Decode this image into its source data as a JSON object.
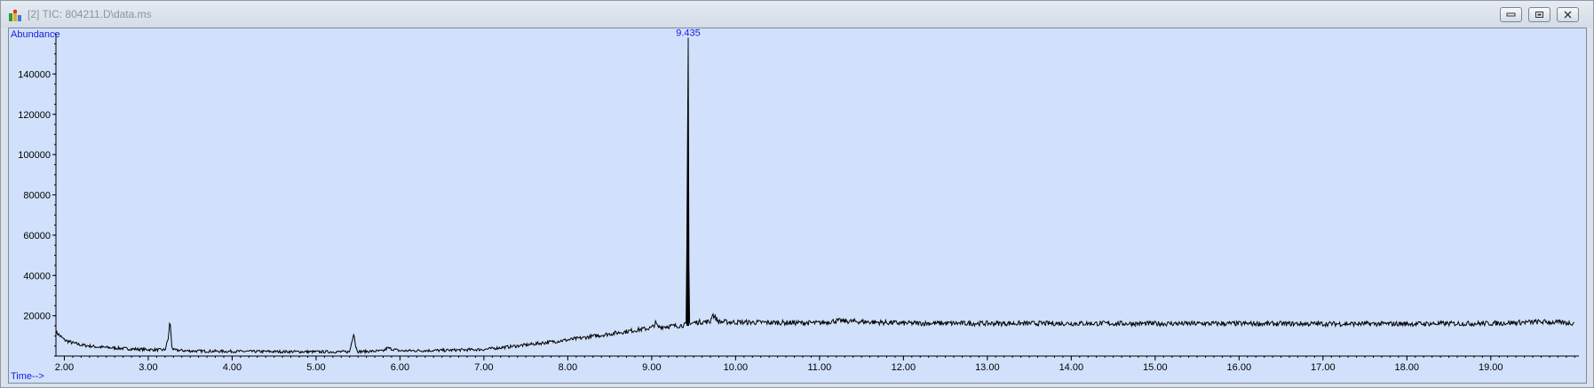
{
  "window": {
    "title": "[2] TIC: 804211.D\\data.ms",
    "icons": {
      "app": "chromatogram-app-icon",
      "minimize": "minimize-icon",
      "restore": "restore-icon",
      "close": "close-icon"
    }
  },
  "colors": {
    "plot_background": "#d1e1fb",
    "trace": "#000000",
    "labels": "#1a1adf",
    "window_frame": "#dbe2ec"
  },
  "chart_data": {
    "type": "line",
    "ylabel": "Abundance",
    "xlabel": "Time-->",
    "x_ticks": [
      "2.00",
      "3.00",
      "4.00",
      "5.00",
      "6.00",
      "7.00",
      "8.00",
      "9.00",
      "10.00",
      "11.00",
      "12.00",
      "13.00",
      "14.00",
      "15.00",
      "16.00",
      "17.00",
      "18.00",
      "19.00"
    ],
    "y_ticks": [
      "20000",
      "40000",
      "60000",
      "80000",
      "100000",
      "120000",
      "140000"
    ],
    "xlim": [
      1.9,
      20.05
    ],
    "ylim": [
      0,
      160000
    ],
    "grid": false,
    "peak_label": "9.435",
    "series": [
      {
        "x": [
          1.9,
          1.95,
          2.0,
          2.1,
          2.2,
          2.4,
          2.6,
          2.8,
          3.0,
          3.2,
          3.24,
          3.26,
          3.28,
          3.3,
          3.5,
          4.0,
          4.5,
          5.0,
          5.4,
          5.45,
          5.47,
          5.5,
          5.8,
          5.85,
          6.0,
          6.5,
          7.0,
          7.5,
          8.0,
          8.5,
          9.0,
          9.05,
          9.07,
          9.1,
          9.3,
          9.41,
          9.42,
          9.43,
          9.435,
          9.44,
          9.45,
          9.46,
          9.5,
          9.6,
          9.7,
          9.72,
          9.8,
          10.0,
          10.5,
          11.0,
          11.2,
          12.0,
          13.0,
          14.0,
          15.0,
          16.0,
          17.0,
          18.0,
          19.0,
          19.6,
          20.0
        ],
        "y": [
          12000,
          10000,
          8000,
          6500,
          5500,
          4500,
          4000,
          3500,
          3200,
          3000,
          9000,
          18000,
          5000,
          3000,
          2500,
          2300,
          2200,
          2100,
          2100,
          12000,
          5000,
          2200,
          2500,
          4000,
          2600,
          2800,
          3300,
          5500,
          8000,
          11000,
          14000,
          16500,
          14500,
          14500,
          15000,
          15500,
          60000,
          127000,
          158000,
          60000,
          18000,
          16000,
          16500,
          17000,
          17000,
          21000,
          17000,
          16800,
          16600,
          16400,
          17500,
          16300,
          16200,
          16200,
          16100,
          16100,
          16000,
          16000,
          16200,
          17000,
          16300
        ]
      }
    ]
  }
}
